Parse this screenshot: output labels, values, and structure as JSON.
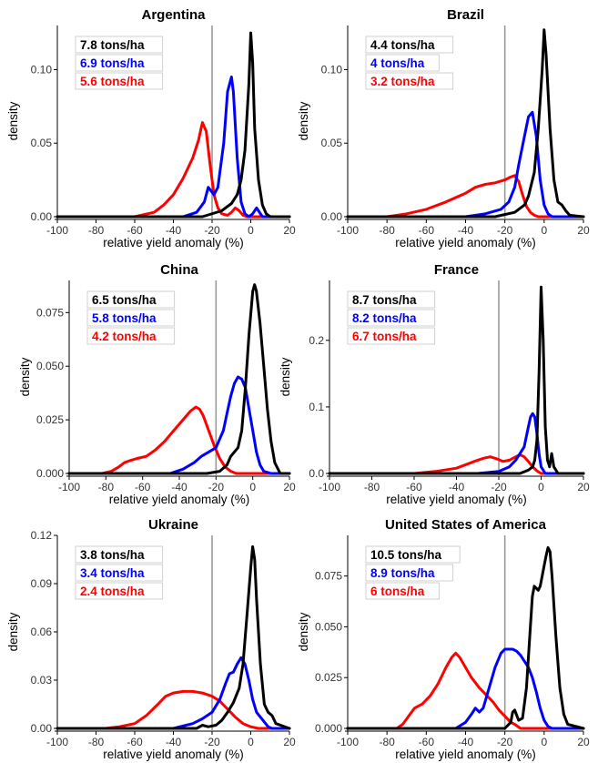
{
  "figure": {
    "xlabel": "relative yield anomaly (%)",
    "ylabel": "density"
  },
  "colors": {
    "black": "#000000",
    "blue": "#0000ff",
    "red": "#ff0000",
    "vline": "#999999"
  },
  "chart_data": [
    {
      "type": "line",
      "title": "Argentina",
      "xlabel": "relative yield anomaly (%)",
      "ylabel": "density",
      "xlim": [
        -100,
        20
      ],
      "ylim": [
        0,
        0.13
      ],
      "xticks": [
        -100,
        -80,
        -60,
        -40,
        -20,
        0,
        20
      ],
      "yticks": [
        0.0,
        0.05,
        0.1
      ],
      "ytick_labels": [
        "0.00",
        "0.05",
        "0.10"
      ],
      "vline": -20,
      "legend": [
        {
          "label": "7.8 tons/ha",
          "color": "#000000"
        },
        {
          "label": "6.9 tons/ha",
          "color": "#0000ff"
        },
        {
          "label": "5.6 tons/ha",
          "color": "#ff0000"
        }
      ],
      "series": [
        {
          "color": "#000000",
          "x": [
            -100,
            -25,
            -15,
            -10,
            -7,
            -5,
            -3,
            -1,
            0,
            1,
            2,
            4,
            6,
            8,
            10,
            20
          ],
          "y": [
            0,
            0,
            0.004,
            0.009,
            0.015,
            0.025,
            0.045,
            0.09,
            0.125,
            0.105,
            0.06,
            0.025,
            0.008,
            0.002,
            0,
            0
          ]
        },
        {
          "color": "#0000ff",
          "x": [
            -100,
            -35,
            -28,
            -24,
            -22,
            -19,
            -17,
            -14,
            -12,
            -10,
            -9,
            -7,
            -5,
            -3,
            -1,
            1,
            3,
            4,
            6,
            8,
            20
          ],
          "y": [
            0,
            0,
            0.003,
            0.01,
            0.02,
            0.015,
            0.02,
            0.05,
            0.085,
            0.095,
            0.085,
            0.04,
            0.01,
            0.002,
            0,
            0.002,
            0.006,
            0.004,
            0,
            0,
            0
          ]
        },
        {
          "color": "#ff0000",
          "x": [
            -100,
            -60,
            -50,
            -45,
            -40,
            -35,
            -30,
            -27,
            -25,
            -23,
            -21,
            -19,
            -17,
            -15,
            -12,
            -10,
            -8,
            -6,
            -4,
            -2,
            0,
            20
          ],
          "y": [
            0,
            0,
            0.003,
            0.008,
            0.015,
            0.026,
            0.04,
            0.052,
            0.064,
            0.058,
            0.035,
            0.015,
            0.006,
            0.002,
            0.001,
            0.003,
            0.006,
            0.004,
            0.001,
            0,
            0,
            0
          ]
        }
      ]
    },
    {
      "type": "line",
      "title": "Brazil",
      "xlabel": "relative yield anomaly (%)",
      "ylabel": "density",
      "xlim": [
        -100,
        20
      ],
      "ylim": [
        0,
        0.13
      ],
      "xticks": [
        -100,
        -80,
        -60,
        -40,
        -20,
        0,
        20
      ],
      "yticks": [
        0.0,
        0.05,
        0.1
      ],
      "ytick_labels": [
        "0.00",
        "0.05",
        "0.10"
      ],
      "vline": -20,
      "legend": [
        {
          "label": "4.4 tons/ha",
          "color": "#000000"
        },
        {
          "label": "4 tons/ha",
          "color": "#0000ff"
        },
        {
          "label": "3.2 tons/ha",
          "color": "#ff0000"
        }
      ],
      "series": [
        {
          "color": "#000000",
          "x": [
            -100,
            -25,
            -15,
            -10,
            -8,
            -5,
            -3,
            -1,
            0,
            1,
            3,
            5,
            7,
            9,
            11,
            13,
            20
          ],
          "y": [
            0,
            0,
            0.003,
            0.008,
            0.014,
            0.03,
            0.06,
            0.1,
            0.127,
            0.11,
            0.06,
            0.025,
            0.01,
            0.008,
            0.004,
            0.001,
            0
          ]
        },
        {
          "color": "#0000ff",
          "x": [
            -100,
            -40,
            -30,
            -22,
            -18,
            -15,
            -13,
            -10,
            -8,
            -6,
            -4,
            -2,
            0,
            2,
            4,
            20
          ],
          "y": [
            0,
            0,
            0.002,
            0.005,
            0.01,
            0.02,
            0.035,
            0.055,
            0.068,
            0.071,
            0.055,
            0.025,
            0.008,
            0.002,
            0,
            0
          ]
        },
        {
          "color": "#ff0000",
          "x": [
            -100,
            -80,
            -70,
            -60,
            -50,
            -40,
            -35,
            -30,
            -25,
            -20,
            -17,
            -15,
            -13,
            -11,
            -9,
            -7,
            -5,
            -3,
            0,
            20
          ],
          "y": [
            0,
            0,
            0.002,
            0.005,
            0.01,
            0.016,
            0.02,
            0.022,
            0.023,
            0.025,
            0.027,
            0.028,
            0.024,
            0.015,
            0.007,
            0.003,
            0.001,
            0,
            0,
            0
          ]
        }
      ]
    },
    {
      "type": "line",
      "title": "China",
      "xlabel": "relative yield anomaly (%)",
      "ylabel": "density",
      "xlim": [
        -100,
        20
      ],
      "ylim": [
        0,
        0.09
      ],
      "xticks": [
        -100,
        -80,
        -60,
        -40,
        -20,
        0,
        20
      ],
      "yticks": [
        0.0,
        0.025,
        0.05,
        0.075
      ],
      "ytick_labels": [
        "0.000",
        "0.025",
        "0.050",
        "0.075"
      ],
      "vline": -20,
      "legend": [
        {
          "label": "6.5 tons/ha",
          "color": "#000000"
        },
        {
          "label": "5.8 tons/ha",
          "color": "#0000ff"
        },
        {
          "label": "4.2 tons/ha",
          "color": "#ff0000"
        }
      ],
      "series": [
        {
          "color": "#000000",
          "x": [
            -100,
            -25,
            -18,
            -14,
            -12,
            -10,
            -8,
            -6,
            -4,
            -2,
            0,
            1,
            2,
            4,
            6,
            8,
            10,
            12,
            15,
            20
          ],
          "y": [
            0,
            0,
            0.001,
            0.004,
            0.008,
            0.01,
            0.012,
            0.02,
            0.04,
            0.065,
            0.085,
            0.088,
            0.085,
            0.07,
            0.05,
            0.03,
            0.015,
            0.005,
            0,
            0
          ]
        },
        {
          "color": "#0000ff",
          "x": [
            -100,
            -45,
            -38,
            -32,
            -28,
            -24,
            -20,
            -16,
            -14,
            -12,
            -10,
            -8,
            -6,
            -4,
            -2,
            0,
            2,
            4,
            6,
            10,
            20
          ],
          "y": [
            0,
            0,
            0.002,
            0.005,
            0.008,
            0.01,
            0.012,
            0.02,
            0.028,
            0.036,
            0.042,
            0.045,
            0.044,
            0.04,
            0.03,
            0.02,
            0.01,
            0.004,
            0.001,
            0,
            0
          ]
        },
        {
          "color": "#ff0000",
          "x": [
            -100,
            -82,
            -77,
            -73,
            -70,
            -67,
            -63,
            -58,
            -53,
            -48,
            -43,
            -38,
            -34,
            -31,
            -29,
            -27,
            -24,
            -21,
            -18,
            -15,
            -12,
            -9,
            -6,
            0,
            20
          ],
          "y": [
            0,
            0,
            0.001,
            0.003,
            0.005,
            0.006,
            0.007,
            0.008,
            0.011,
            0.015,
            0.02,
            0.025,
            0.029,
            0.031,
            0.03,
            0.027,
            0.02,
            0.013,
            0.007,
            0.003,
            0.001,
            0,
            0,
            0,
            0
          ]
        }
      ]
    },
    {
      "type": "line",
      "title": "France",
      "xlabel": "relative yield anomaly (%)",
      "ylabel": "density",
      "xlim": [
        -100,
        20
      ],
      "ylim": [
        0,
        0.29
      ],
      "xticks": [
        -100,
        -80,
        -60,
        -40,
        -20,
        0,
        20
      ],
      "yticks": [
        0.0,
        0.1,
        0.2
      ],
      "ytick_labels": [
        "0.0",
        "0.1",
        "0.2"
      ],
      "vline": -20,
      "legend": [
        {
          "label": "8.7 tons/ha",
          "color": "#000000"
        },
        {
          "label": "8.2 tons/ha",
          "color": "#0000ff"
        },
        {
          "label": "6.7 tons/ha",
          "color": "#ff0000"
        }
      ],
      "series": [
        {
          "color": "#000000",
          "x": [
            -100,
            -10,
            -6,
            -4,
            -3,
            -2,
            -1,
            0,
            1,
            2,
            3,
            4,
            5,
            6,
            8,
            20
          ],
          "y": [
            0,
            0,
            0.005,
            0.01,
            0.02,
            0.05,
            0.15,
            0.28,
            0.2,
            0.07,
            0.02,
            0.01,
            0.03,
            0.01,
            0,
            0
          ]
        },
        {
          "color": "#0000ff",
          "x": [
            -100,
            -30,
            -20,
            -15,
            -12,
            -10,
            -8,
            -6,
            -5,
            -4,
            -3,
            -2,
            -1,
            0,
            2,
            20
          ],
          "y": [
            0,
            0,
            0.003,
            0.01,
            0.02,
            0.03,
            0.04,
            0.07,
            0.085,
            0.09,
            0.085,
            0.06,
            0.03,
            0.01,
            0,
            0
          ]
        },
        {
          "color": "#ff0000",
          "x": [
            -100,
            -60,
            -50,
            -40,
            -35,
            -30,
            -27,
            -24,
            -21,
            -18,
            -15,
            -12,
            -10,
            -8,
            -6,
            -4,
            -2,
            0,
            20
          ],
          "y": [
            0,
            0,
            0.003,
            0.008,
            0.014,
            0.02,
            0.023,
            0.025,
            0.022,
            0.018,
            0.02,
            0.025,
            0.028,
            0.025,
            0.018,
            0.01,
            0.004,
            0,
            0
          ]
        }
      ]
    },
    {
      "type": "line",
      "title": "Ukraine",
      "xlabel": "relative yield anomaly (%)",
      "ylabel": "density",
      "xlim": [
        -100,
        20
      ],
      "ylim": [
        0,
        0.12
      ],
      "xticks": [
        -100,
        -80,
        -60,
        -40,
        -20,
        0,
        20
      ],
      "yticks": [
        0.0,
        0.03,
        0.06,
        0.09,
        0.12
      ],
      "ytick_labels": [
        "0.00",
        "0.03",
        "0.06",
        "0.09",
        "0.12"
      ],
      "vline": -20,
      "legend": [
        {
          "label": "3.8 tons/ha",
          "color": "#000000"
        },
        {
          "label": "3.4 tons/ha",
          "color": "#0000ff"
        },
        {
          "label": "2.4 tons/ha",
          "color": "#ff0000"
        }
      ],
      "series": [
        {
          "color": "#000000",
          "x": [
            -100,
            -28,
            -25,
            -22,
            -18,
            -15,
            -12,
            -9,
            -6,
            -4,
            -2,
            0,
            1,
            2,
            3,
            5,
            7,
            9,
            11,
            13,
            20
          ],
          "y": [
            0,
            0,
            0.002,
            0.001,
            0.002,
            0.005,
            0.01,
            0.016,
            0.025,
            0.04,
            0.07,
            0.1,
            0.113,
            0.105,
            0.08,
            0.04,
            0.015,
            0.01,
            0.008,
            0.003,
            0
          ]
        },
        {
          "color": "#0000ff",
          "x": [
            -100,
            -40,
            -30,
            -25,
            -20,
            -16,
            -13,
            -11,
            -9,
            -7,
            -5,
            -3,
            -1,
            1,
            3,
            5,
            7,
            9,
            11,
            20
          ],
          "y": [
            0,
            0,
            0.003,
            0.006,
            0.01,
            0.018,
            0.028,
            0.034,
            0.035,
            0.04,
            0.044,
            0.04,
            0.03,
            0.018,
            0.01,
            0.007,
            0.004,
            0.001,
            0,
            0
          ]
        },
        {
          "color": "#ff0000",
          "x": [
            -100,
            -75,
            -68,
            -60,
            -54,
            -48,
            -44,
            -40,
            -35,
            -30,
            -25,
            -20,
            -16,
            -12,
            -8,
            -4,
            0,
            4,
            20
          ],
          "y": [
            0,
            0,
            0.001,
            0.003,
            0.008,
            0.015,
            0.02,
            0.022,
            0.023,
            0.023,
            0.022,
            0.02,
            0.017,
            0.012,
            0.007,
            0.003,
            0.001,
            0,
            0
          ]
        }
      ]
    },
    {
      "type": "line",
      "title": "United States of America",
      "xlabel": "relative yield anomaly (%)",
      "ylabel": "density",
      "xlim": [
        -100,
        20
      ],
      "ylim": [
        0,
        0.095
      ],
      "xticks": [
        -100,
        -80,
        -60,
        -40,
        -20,
        0,
        20
      ],
      "yticks": [
        0.0,
        0.025,
        0.05,
        0.075
      ],
      "ytick_labels": [
        "0.000",
        "0.025",
        "0.050",
        "0.075"
      ],
      "vline": -20,
      "legend": [
        {
          "label": "10.5 tons/ha",
          "color": "#000000"
        },
        {
          "label": "8.9 tons/ha",
          "color": "#0000ff"
        },
        {
          "label": "6 tons/ha",
          "color": "#ff0000"
        }
      ],
      "series": [
        {
          "color": "#000000",
          "x": [
            -100,
            -20,
            -17,
            -16,
            -15,
            -13,
            -11,
            -9,
            -7,
            -6,
            -5,
            -3,
            -2,
            -1,
            0,
            1,
            2,
            3,
            4,
            6,
            8,
            10,
            12,
            20
          ],
          "y": [
            0,
            0,
            0.003,
            0.008,
            0.009,
            0.004,
            0.005,
            0.02,
            0.05,
            0.065,
            0.07,
            0.068,
            0.07,
            0.075,
            0.08,
            0.085,
            0.089,
            0.087,
            0.075,
            0.045,
            0.02,
            0.007,
            0.002,
            0
          ]
        },
        {
          "color": "#0000ff",
          "x": [
            -100,
            -45,
            -40,
            -37,
            -35,
            -33,
            -31,
            -28,
            -25,
            -22,
            -20,
            -18,
            -16,
            -14,
            -12,
            -10,
            -8,
            -6,
            -4,
            -2,
            0,
            2,
            4,
            8,
            20
          ],
          "y": [
            0,
            0,
            0.003,
            0.007,
            0.01,
            0.008,
            0.01,
            0.02,
            0.03,
            0.037,
            0.039,
            0.039,
            0.039,
            0.038,
            0.036,
            0.033,
            0.03,
            0.025,
            0.018,
            0.01,
            0.004,
            0.001,
            0,
            0,
            0
          ]
        },
        {
          "color": "#ff0000",
          "x": [
            -100,
            -75,
            -72,
            -69,
            -66,
            -62,
            -58,
            -54,
            -50,
            -47,
            -45,
            -43,
            -40,
            -37,
            -33,
            -29,
            -26,
            -23,
            -20,
            -17,
            -15,
            -12,
            -8,
            0,
            20
          ],
          "y": [
            0,
            0,
            0.002,
            0.006,
            0.01,
            0.012,
            0.016,
            0.022,
            0.03,
            0.035,
            0.037,
            0.035,
            0.03,
            0.025,
            0.02,
            0.016,
            0.013,
            0.009,
            0.006,
            0.003,
            0.002,
            0,
            0,
            0,
            0
          ]
        }
      ]
    }
  ]
}
